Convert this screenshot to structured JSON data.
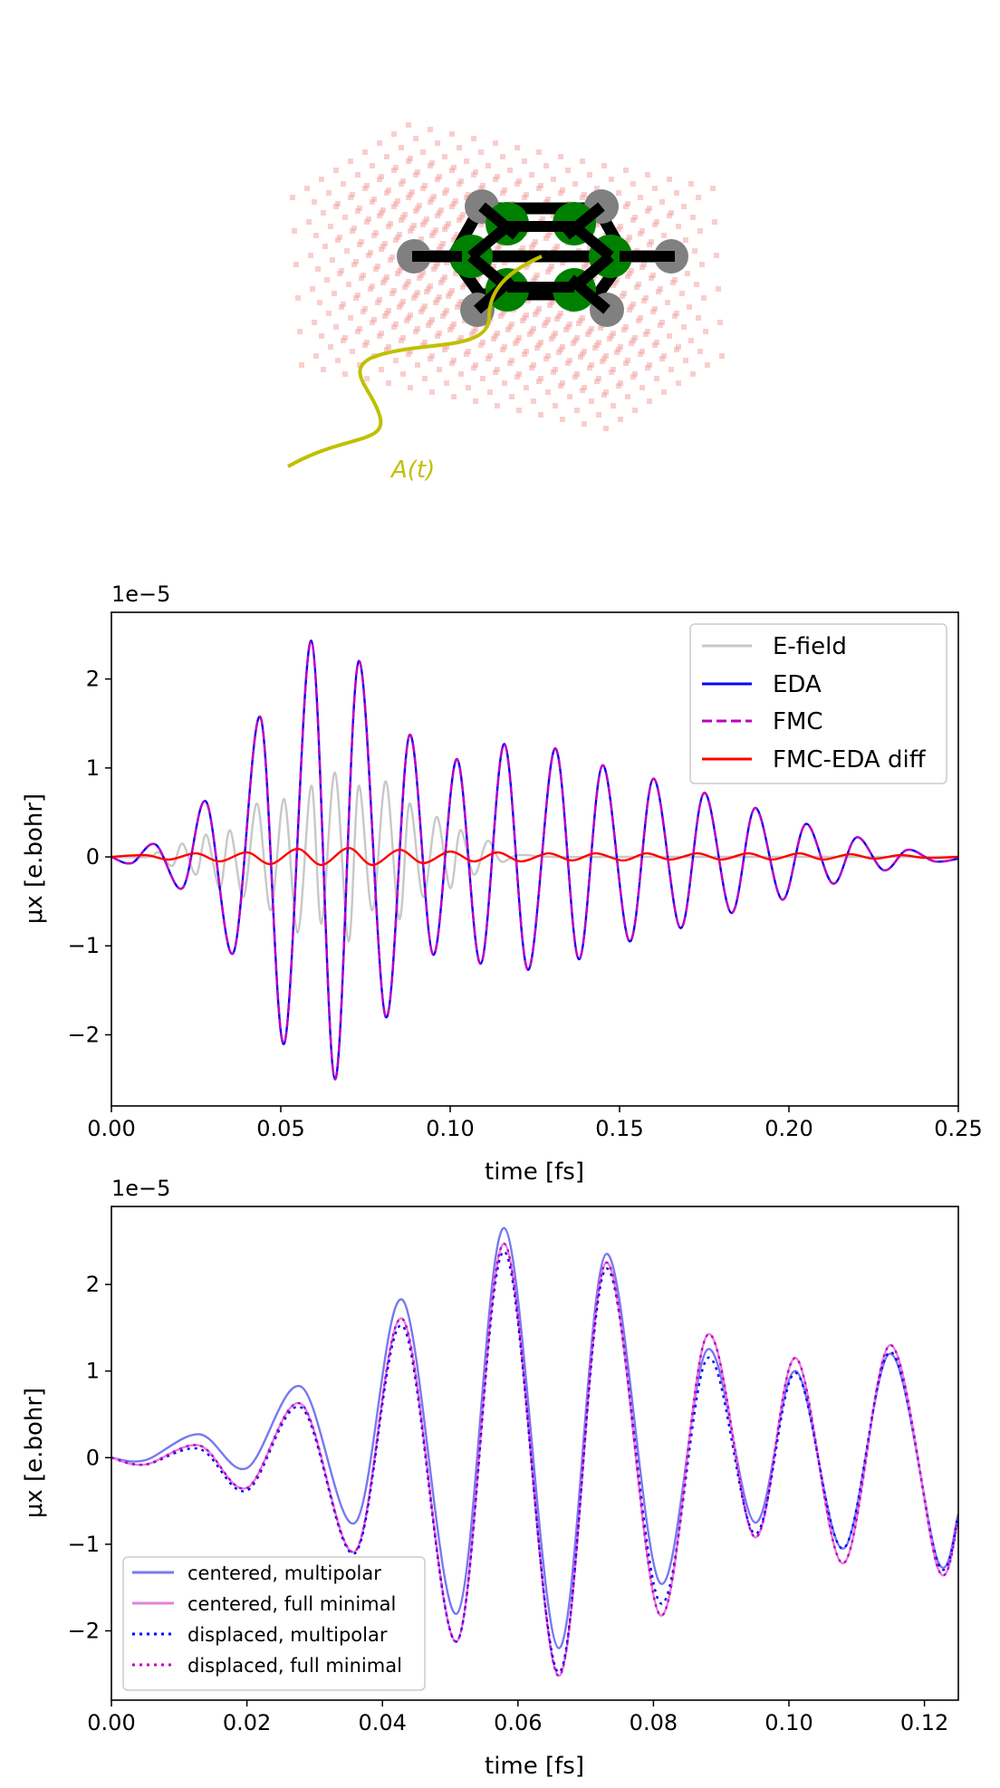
{
  "illustration": {
    "field_label": "A(t)",
    "colors": {
      "grid": "#f4a6a6",
      "carbon": "#008000",
      "hydrogen": "#808080",
      "bond": "#000000",
      "field": "#c0c000"
    }
  },
  "chart_data": [
    {
      "type": "line",
      "offset_text": "1e−5",
      "xlabel": "time [fs]",
      "ylabel": "μx [e.bohr]",
      "xlim": [
        0,
        0.25
      ],
      "ylim": [
        -2.8,
        2.75
      ],
      "xticks": [
        0,
        0.05,
        0.1,
        0.15,
        0.2,
        0.25
      ],
      "xtick_labels": [
        "0.00",
        "0.05",
        "0.10",
        "0.15",
        "0.20",
        "0.25"
      ],
      "yticks": [
        -2,
        -1,
        0,
        1,
        2
      ],
      "ytick_labels": [
        "−2",
        "−1",
        "0",
        "1",
        "2"
      ],
      "legend_position": "top-right",
      "series": [
        {
          "name": "E-field",
          "color": "#c8c8c8",
          "style": "solid",
          "width": 2.4,
          "x": [
            0,
            0.011,
            0.014,
            0.018,
            0.021,
            0.025,
            0.028,
            0.032,
            0.035,
            0.039,
            0.043,
            0.047,
            0.051,
            0.055,
            0.059,
            0.062,
            0.066,
            0.07,
            0.073,
            0.077,
            0.081,
            0.085,
            0.088,
            0.092,
            0.096,
            0.1,
            0.103,
            0.107,
            0.111,
            0.115,
            0.12,
            0.13,
            0.15,
            0.2,
            0.25
          ],
          "y": [
            0,
            0,
            0.05,
            -0.1,
            0.15,
            -0.2,
            0.25,
            -0.35,
            0.3,
            -0.45,
            0.6,
            -0.6,
            0.65,
            -0.85,
            0.8,
            -0.75,
            0.95,
            -0.95,
            0.8,
            -0.6,
            0.85,
            -0.7,
            0.6,
            -0.45,
            0.45,
            -0.35,
            0.3,
            -0.2,
            0.18,
            -0.05,
            0.02,
            0,
            0,
            0,
            0
          ]
        },
        {
          "name": "EDA",
          "color": "#0000ff",
          "style": "solid",
          "width": 2.4,
          "x": [
            0,
            0.006,
            0.013,
            0.021,
            0.028,
            0.036,
            0.044,
            0.051,
            0.059,
            0.066,
            0.073,
            0.081,
            0.088,
            0.095,
            0.102,
            0.109,
            0.116,
            0.123,
            0.131,
            0.138,
            0.145,
            0.153,
            0.16,
            0.168,
            0.175,
            0.183,
            0.19,
            0.198,
            0.205,
            0.213,
            0.22,
            0.228,
            0.235,
            0.243,
            0.25
          ],
          "y": [
            0,
            -0.07,
            0.14,
            -0.35,
            0.62,
            -1.08,
            1.57,
            -2.1,
            2.43,
            -2.5,
            2.2,
            -1.8,
            1.37,
            -1.1,
            1.1,
            -1.2,
            1.27,
            -1.27,
            1.22,
            -1.15,
            1.03,
            -0.95,
            0.88,
            -0.8,
            0.72,
            -0.63,
            0.55,
            -0.48,
            0.37,
            -0.3,
            0.22,
            -0.15,
            0.08,
            -0.05,
            -0.02
          ]
        },
        {
          "name": "FMC",
          "color": "#bf00bf",
          "style": "dashed",
          "width": 2.4,
          "x": [
            0,
            0.006,
            0.013,
            0.021,
            0.028,
            0.036,
            0.044,
            0.051,
            0.059,
            0.066,
            0.073,
            0.081,
            0.088,
            0.095,
            0.102,
            0.109,
            0.116,
            0.123,
            0.131,
            0.138,
            0.145,
            0.153,
            0.16,
            0.168,
            0.175,
            0.183,
            0.19,
            0.198,
            0.205,
            0.213,
            0.22,
            0.228,
            0.235,
            0.243,
            0.25
          ],
          "y": [
            0,
            -0.07,
            0.14,
            -0.35,
            0.62,
            -1.08,
            1.57,
            -2.1,
            2.43,
            -2.5,
            2.2,
            -1.8,
            1.37,
            -1.1,
            1.1,
            -1.2,
            1.27,
            -1.27,
            1.22,
            -1.15,
            1.03,
            -0.95,
            0.88,
            -0.8,
            0.72,
            -0.63,
            0.55,
            -0.48,
            0.37,
            -0.3,
            0.22,
            -0.15,
            0.08,
            -0.05,
            -0.02
          ]
        },
        {
          "name": "FMC-EDA diff",
          "color": "#ff0000",
          "style": "solid",
          "width": 2.4,
          "x": [
            0,
            0.01,
            0.017,
            0.025,
            0.032,
            0.04,
            0.047,
            0.055,
            0.062,
            0.07,
            0.077,
            0.085,
            0.092,
            0.1,
            0.107,
            0.114,
            0.121,
            0.129,
            0.136,
            0.143,
            0.151,
            0.158,
            0.165,
            0.173,
            0.18,
            0.188,
            0.195,
            0.203,
            0.21,
            0.218,
            0.225,
            0.233,
            0.24,
            0.25
          ],
          "y": [
            0,
            0.02,
            -0.03,
            0.04,
            -0.05,
            0.05,
            -0.08,
            0.09,
            -0.09,
            0.1,
            -0.09,
            0.08,
            -0.07,
            0.06,
            -0.05,
            0.05,
            -0.05,
            0.04,
            -0.04,
            0.04,
            -0.04,
            0.04,
            -0.03,
            0.04,
            -0.03,
            0.04,
            -0.03,
            0.04,
            -0.03,
            0.03,
            -0.02,
            0.02,
            -0.01,
            0
          ]
        }
      ]
    },
    {
      "type": "line",
      "offset_text": "1e−5",
      "xlabel": "time [fs]",
      "ylabel": "μx [e.bohr]",
      "xlim": [
        0,
        0.125
      ],
      "ylim": [
        -2.8,
        2.9
      ],
      "xticks": [
        0,
        0.02,
        0.04,
        0.06,
        0.08,
        0.1,
        0.12
      ],
      "xtick_labels": [
        "0.00",
        "0.02",
        "0.04",
        "0.06",
        "0.08",
        "0.10",
        "0.12"
      ],
      "yticks": [
        -2,
        -1,
        0,
        1,
        2
      ],
      "ytick_labels": [
        "−2",
        "−1",
        "0",
        "1",
        "2"
      ],
      "legend_position": "lower-left",
      "series": [
        {
          "name": "centered, multipolar",
          "color": "#7878f0",
          "style": "solid",
          "width": 2.4,
          "x": [
            0,
            0.005,
            0.013,
            0.02,
            0.028,
            0.036,
            0.043,
            0.051,
            0.058,
            0.066,
            0.073,
            0.081,
            0.088,
            0.095,
            0.101,
            0.108,
            0.115,
            0.122,
            0.125
          ],
          "y": [
            0,
            -0.03,
            0.27,
            -0.12,
            0.82,
            -0.75,
            1.82,
            -1.8,
            2.65,
            -2.2,
            2.35,
            -1.45,
            1.25,
            -0.75,
            1.0,
            -1.05,
            1.2,
            -1.2,
            -0.65
          ]
        },
        {
          "name": "centered, full minimal",
          "color": "#e080e0",
          "style": "solid",
          "width": 2.4,
          "x": [
            0,
            0.005,
            0.013,
            0.02,
            0.028,
            0.036,
            0.043,
            0.051,
            0.058,
            0.066,
            0.073,
            0.081,
            0.088,
            0.095,
            0.101,
            0.108,
            0.115,
            0.122,
            0.125
          ],
          "y": [
            0,
            -0.08,
            0.14,
            -0.35,
            0.62,
            -1.08,
            1.6,
            -2.12,
            2.47,
            -2.52,
            2.25,
            -1.82,
            1.42,
            -0.92,
            1.15,
            -1.22,
            1.3,
            -1.28,
            -0.7
          ]
        },
        {
          "name": "displaced, multipolar",
          "color": "#0000ff",
          "style": "dotted",
          "width": 2.4,
          "x": [
            0,
            0.005,
            0.013,
            0.02,
            0.028,
            0.036,
            0.043,
            0.051,
            0.058,
            0.066,
            0.073,
            0.081,
            0.088,
            0.095,
            0.101,
            0.108,
            0.115,
            0.122,
            0.125
          ],
          "y": [
            0,
            -0.08,
            0.1,
            -0.38,
            0.58,
            -1.1,
            1.52,
            -2.12,
            2.38,
            -2.48,
            2.18,
            -1.68,
            1.15,
            -0.88,
            0.98,
            -1.05,
            1.22,
            -1.22,
            -0.68
          ]
        },
        {
          "name": "displaced, full minimal",
          "color": "#bf00bf",
          "style": "dotted",
          "width": 2.4,
          "x": [
            0,
            0.005,
            0.013,
            0.02,
            0.028,
            0.036,
            0.043,
            0.051,
            0.058,
            0.066,
            0.073,
            0.081,
            0.088,
            0.095,
            0.101,
            0.108,
            0.115,
            0.122,
            0.125
          ],
          "y": [
            0,
            -0.08,
            0.14,
            -0.35,
            0.62,
            -1.08,
            1.6,
            -2.12,
            2.47,
            -2.52,
            2.25,
            -1.82,
            1.42,
            -0.92,
            1.15,
            -1.22,
            1.3,
            -1.28,
            -0.7
          ]
        }
      ]
    }
  ]
}
